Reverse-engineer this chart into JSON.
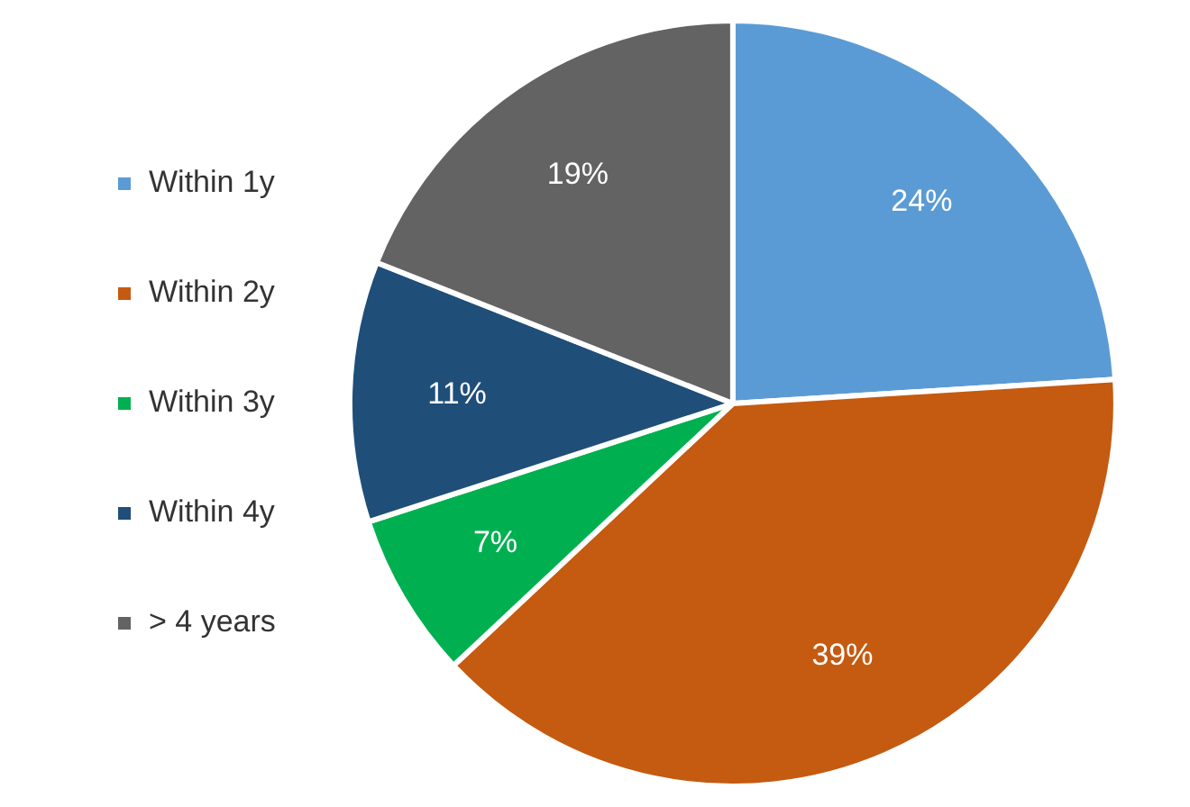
{
  "chart_data": {
    "type": "pie",
    "categories": [
      "Within 1y",
      "Within 2y",
      "Within 3y",
      "Within 4y",
      "> 4 years"
    ],
    "values": [
      24,
      39,
      7,
      11,
      19
    ],
    "colors": [
      "#5b9bd5",
      "#c55a11",
      "#00b050",
      "#1f4e79",
      "#636363"
    ],
    "value_labels": [
      "24%",
      "39%",
      "7%",
      "11%",
      "19%"
    ],
    "legend": "left"
  }
}
